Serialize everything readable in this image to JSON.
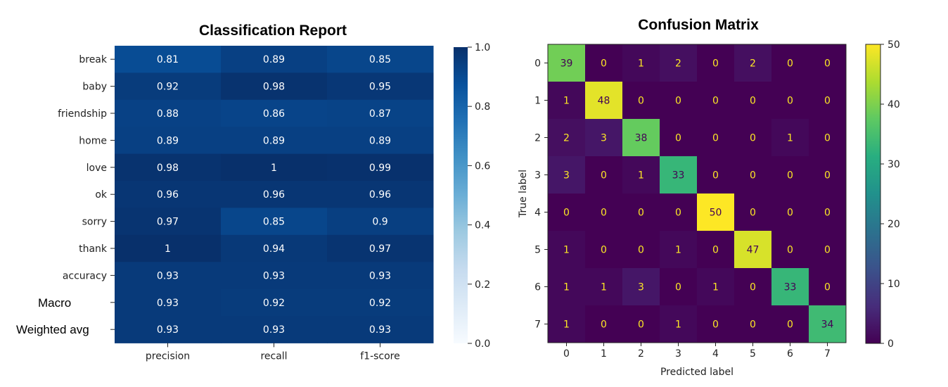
{
  "chart_data": [
    {
      "type": "heatmap",
      "title": "Classification Report",
      "columns": [
        "precision",
        "recall",
        "f1-score"
      ],
      "rows": [
        "break",
        "baby",
        "friendship",
        "home",
        "love",
        "ok",
        "sorry",
        "thank",
        "accuracy",
        "Macro",
        "Weighted avg"
      ],
      "values": [
        [
          0.81,
          0.89,
          0.85
        ],
        [
          0.92,
          0.98,
          0.95
        ],
        [
          0.88,
          0.86,
          0.87
        ],
        [
          0.89,
          0.89,
          0.89
        ],
        [
          0.98,
          1,
          0.99
        ],
        [
          0.96,
          0.96,
          0.96
        ],
        [
          0.97,
          0.85,
          0.9
        ],
        [
          1,
          0.94,
          0.97
        ],
        [
          0.93,
          0.93,
          0.93
        ],
        [
          0.93,
          0.92,
          0.92
        ],
        [
          0.93,
          0.93,
          0.93
        ]
      ],
      "colormap": "Blues",
      "vmin": 0.0,
      "vmax": 1.0,
      "colorbar_ticks": [
        "0.0",
        "0.2",
        "0.4",
        "0.6",
        "0.8",
        "1.0"
      ]
    },
    {
      "type": "heatmap",
      "title": "Confusion Matrix",
      "xlabel": "Predicted label",
      "ylabel": "True label",
      "labels": [
        "0",
        "1",
        "2",
        "3",
        "4",
        "5",
        "6",
        "7"
      ],
      "matrix": [
        [
          39,
          0,
          1,
          2,
          0,
          2,
          0,
          0
        ],
        [
          1,
          48,
          0,
          0,
          0,
          0,
          0,
          0
        ],
        [
          2,
          3,
          38,
          0,
          0,
          0,
          1,
          0
        ],
        [
          3,
          0,
          1,
          33,
          0,
          0,
          0,
          0
        ],
        [
          0,
          0,
          0,
          0,
          50,
          0,
          0,
          0
        ],
        [
          1,
          0,
          0,
          1,
          0,
          47,
          0,
          0
        ],
        [
          1,
          1,
          3,
          0,
          1,
          0,
          33,
          0
        ],
        [
          1,
          0,
          0,
          1,
          0,
          0,
          0,
          34
        ]
      ],
      "colormap": "viridis",
      "vmin": 0,
      "vmax": 50,
      "colorbar_ticks": [
        "0",
        "10",
        "20",
        "30",
        "40",
        "50"
      ]
    }
  ]
}
